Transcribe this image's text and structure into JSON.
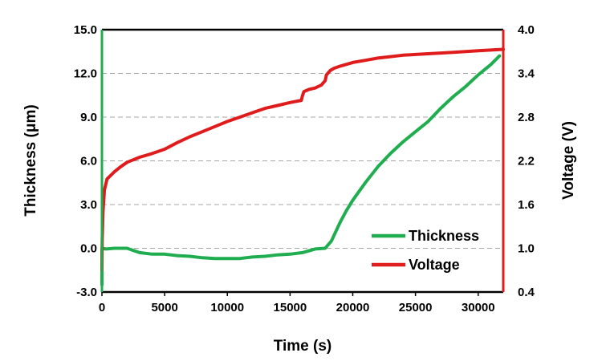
{
  "chart_data": {
    "type": "line",
    "title": "",
    "xlabel": "Time (s)",
    "ylabel_left": "Thickness (μm)",
    "ylabel_right": "Voltage (V)",
    "xlim": [
      0,
      32000
    ],
    "ylim_left": [
      -3.0,
      15.0
    ],
    "ylim_right": [
      0.4,
      4.0
    ],
    "x_ticks": [
      "0",
      "5000",
      "10000",
      "15000",
      "20000",
      "25000",
      "30000"
    ],
    "y_left_ticks": [
      "15.0",
      "12.0",
      "9.0",
      "6.0",
      "3.0",
      "0.0",
      "-3.0"
    ],
    "y_right_ticks": [
      "4.0",
      "3.4",
      "2.8",
      "2.2",
      "1.6",
      "1.0",
      "0.4"
    ],
    "grid": "horizontal-dashed",
    "legend_position": "bottom-right",
    "colors": {
      "thickness": "#1fad4f",
      "voltage": "#e01b1b"
    },
    "series": [
      {
        "name": "Thickness",
        "axis": "left",
        "x": [
          0,
          0,
          300,
          1000,
          2000,
          3000,
          4000,
          5000,
          6000,
          7000,
          8000,
          9000,
          10000,
          11000,
          12000,
          13000,
          14000,
          15000,
          16000,
          17000,
          17800,
          18300,
          19000,
          19500,
          20000,
          21000,
          22000,
          23000,
          24000,
          25000,
          26000,
          27000,
          28000,
          29000,
          30000,
          31000,
          31700
        ],
        "y": [
          -2.5,
          0.0,
          -0.05,
          0.0,
          0.0,
          -0.3,
          -0.4,
          -0.4,
          -0.5,
          -0.55,
          -0.65,
          -0.7,
          -0.7,
          -0.7,
          -0.6,
          -0.55,
          -0.45,
          -0.4,
          -0.3,
          -0.05,
          0.0,
          0.5,
          1.8,
          2.6,
          3.3,
          4.5,
          5.6,
          6.5,
          7.3,
          8.0,
          8.7,
          9.6,
          10.4,
          11.1,
          11.9,
          12.6,
          13.2
        ]
      },
      {
        "name": "Voltage",
        "axis": "right",
        "x": [
          0,
          20,
          80,
          200,
          400,
          700,
          1000,
          1500,
          2000,
          3000,
          4000,
          5000,
          6000,
          7000,
          8000,
          9000,
          10000,
          11000,
          12000,
          13000,
          14000,
          15000,
          15900,
          16000,
          16100,
          16500,
          17000,
          17500,
          17800,
          17900,
          18200,
          18500,
          19000,
          20000,
          21000,
          22000,
          23000,
          24000,
          25000,
          26000,
          27000,
          28000,
          29000,
          30000,
          31000,
          32000
        ],
        "y": [
          0.7,
          1.1,
          1.5,
          1.8,
          1.95,
          2.0,
          2.05,
          2.12,
          2.18,
          2.25,
          2.3,
          2.36,
          2.45,
          2.53,
          2.6,
          2.67,
          2.74,
          2.8,
          2.86,
          2.92,
          2.96,
          3.0,
          3.03,
          3.1,
          3.15,
          3.18,
          3.2,
          3.24,
          3.3,
          3.38,
          3.44,
          3.47,
          3.5,
          3.55,
          3.58,
          3.61,
          3.63,
          3.65,
          3.66,
          3.67,
          3.68,
          3.69,
          3.7,
          3.71,
          3.72,
          3.73
        ]
      }
    ]
  }
}
